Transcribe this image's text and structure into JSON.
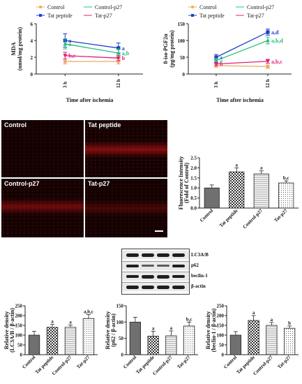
{
  "legend": {
    "control": "Control",
    "tat_peptide": "Tat peptide",
    "control_p27": "Control-p27",
    "tat_p27": "Tat-p27"
  },
  "colors": {
    "control": "#f0a860",
    "tat_peptide": "#1e3fc8",
    "control_p27": "#22c07a",
    "tat_p27": "#e0207a",
    "bar": "#707070"
  },
  "micrographs": {
    "control": "Control",
    "tat_peptide": "Tat peptide",
    "control_p27": "Control-p27",
    "tat_p27": "Tat-p27"
  },
  "blot": {
    "rows": [
      "LC3A/B",
      "p62",
      "beclin-1",
      "β-actin"
    ]
  },
  "chart_data": [
    {
      "id": "mda",
      "type": "line",
      "ylabel_line1": "MDA",
      "ylabel_line2": "(nmol/mg protein)",
      "xlabel": "Time after ischemia",
      "x": [
        "3 h",
        "12 h"
      ],
      "ylim": [
        0,
        6
      ],
      "yticks": [
        "0",
        "2",
        "4",
        "6"
      ],
      "series": [
        {
          "name": "Control",
          "color": "#f0a860",
          "marker": "circle",
          "values": [
            1.5,
            1.5
          ],
          "err": [
            0.3,
            0.3
          ],
          "labels": [
            "",
            ""
          ]
        },
        {
          "name": "Tat peptide",
          "color": "#1e3fc8",
          "marker": "square",
          "values": [
            4.0,
            3.1
          ],
          "err": [
            0.8,
            0.6
          ],
          "labels": [
            "a",
            "a"
          ]
        },
        {
          "name": "Control-p27",
          "color": "#22c07a",
          "marker": "triangle",
          "values": [
            3.6,
            2.5
          ],
          "err": [
            0.6,
            0.5
          ],
          "labels": [
            "a",
            "a,b"
          ]
        },
        {
          "name": "Tat-p27",
          "color": "#e0207a",
          "marker": "triangle-down",
          "values": [
            2.2,
            1.9
          ],
          "err": [
            0.4,
            0.3
          ],
          "labels": [
            "b,c",
            "b"
          ]
        }
      ]
    },
    {
      "id": "isoprostane",
      "type": "line",
      "ylabel_line1": "8-iso-PGF2α",
      "ylabel_line2": "(pg/mg protein)",
      "xlabel": "Time after ischemia",
      "x": [
        "3 h",
        "12 h"
      ],
      "ylim": [
        0,
        150
      ],
      "yticks": [
        "0",
        "50",
        "100",
        "150"
      ],
      "series": [
        {
          "name": "Control",
          "color": "#f0a860",
          "marker": "circle",
          "values": [
            25,
            22
          ],
          "err": [
            5,
            5
          ],
          "labels": [
            "",
            ""
          ]
        },
        {
          "name": "Tat peptide",
          "color": "#1e3fc8",
          "marker": "square",
          "values": [
            50,
            125
          ],
          "err": [
            8,
            9
          ],
          "labels": [
            "a",
            "a,d"
          ]
        },
        {
          "name": "Control-p27",
          "color": "#22c07a",
          "marker": "triangle",
          "values": [
            40,
            100
          ],
          "err": [
            7,
            10
          ],
          "labels": [
            "a",
            "a,b,d"
          ]
        },
        {
          "name": "Tat-p27",
          "color": "#e0207a",
          "marker": "triangle-down",
          "values": [
            30,
            38
          ],
          "err": [
            5,
            6
          ],
          "labels": [
            "b",
            "a,b,c"
          ]
        }
      ]
    },
    {
      "id": "fluorescence",
      "type": "bar",
      "ylabel_line1": "Fluorescence Intensity",
      "ylabel_line2": "(Fold of Control)",
      "categories": [
        "Control",
        "Tat peptide",
        "Control-p27",
        "Tat-p27"
      ],
      "values": [
        1.0,
        1.8,
        1.7,
        1.25
      ],
      "err": [
        0.15,
        0.2,
        0.15,
        0.1
      ],
      "labels": [
        "",
        "a",
        "a",
        "b,c"
      ],
      "ylim": [
        0,
        2.5
      ],
      "yticks": [
        "0.0",
        "0.5",
        "1.0",
        "1.5",
        "2.0",
        "2.5"
      ]
    },
    {
      "id": "lc3",
      "type": "bar",
      "ylabel_line1": "Relative density",
      "ylabel_line2": "(LC3A/B / β-actin)",
      "categories": [
        "Control",
        "Tat peptide",
        "Control-p27",
        "Tat-p27"
      ],
      "values": [
        100,
        140,
        140,
        185
      ],
      "err": [
        20,
        15,
        12,
        20
      ],
      "labels": [
        "",
        "a",
        "a",
        "a,b,c"
      ],
      "ylim": [
        0,
        250
      ],
      "yticks": [
        "0",
        "50",
        "100",
        "150",
        "200",
        "250"
      ]
    },
    {
      "id": "p62",
      "type": "bar",
      "ylabel_line1": "Relative density",
      "ylabel_line2": "(p62 / β-actin)",
      "categories": [
        "Control",
        "Tat peptide",
        "Control-p27",
        "Tat-p27"
      ],
      "values": [
        100,
        57,
        58,
        88
      ],
      "err": [
        15,
        15,
        15,
        12
      ],
      "labels": [
        "",
        "a",
        "a",
        "b,c"
      ],
      "ylim": [
        0,
        150
      ],
      "yticks": [
        "0",
        "50",
        "100",
        "150"
      ]
    },
    {
      "id": "beclin",
      "type": "bar",
      "ylabel_line1": "Relative density",
      "ylabel_line2": "(beclin-1 / β-actin)",
      "categories": [
        "Control",
        "Tat peptide",
        "Control-p27",
        "Tat-p27"
      ],
      "values": [
        100,
        175,
        150,
        135
      ],
      "err": [
        18,
        25,
        15,
        12
      ],
      "labels": [
        "",
        "a",
        "a",
        "b"
      ],
      "ylim": [
        0,
        250
      ],
      "yticks": [
        "0",
        "50",
        "100",
        "150",
        "200",
        "250"
      ]
    }
  ]
}
